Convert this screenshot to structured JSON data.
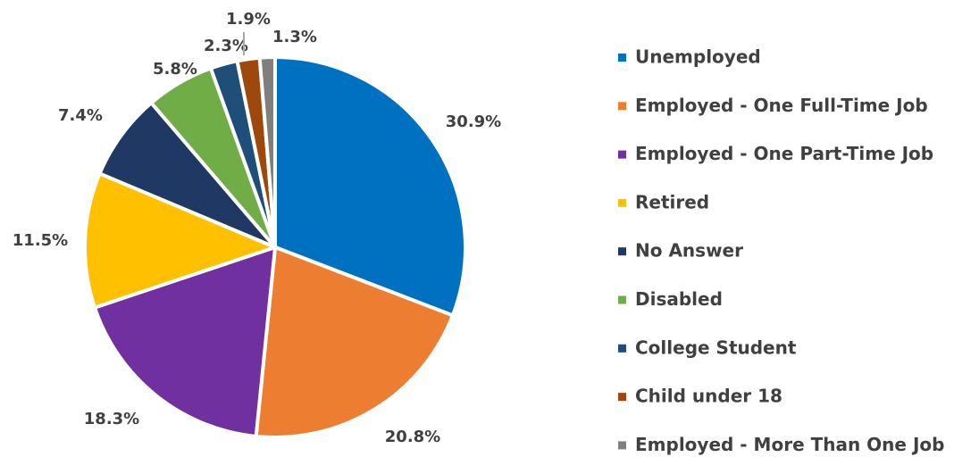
{
  "chart_data": {
    "type": "pie",
    "categories": [
      "Unemployed",
      "Employed - One Full-Time Job",
      "Employed - One Part-Time Job",
      "Retired",
      "No Answer",
      "Disabled",
      "College Student",
      "Child under 18",
      "Employed - More Than One Job"
    ],
    "values": [
      30.9,
      20.8,
      18.3,
      11.5,
      7.4,
      5.8,
      2.3,
      1.9,
      1.3
    ],
    "value_labels": [
      "30.9%",
      "20.8%",
      "18.3%",
      "11.5%",
      "7.4%",
      "5.8%",
      "2.3%",
      "1.9%",
      "1.3%"
    ],
    "colors": [
      "#0070c0",
      "#ed7d31",
      "#7030a0",
      "#ffc000",
      "#1f3864",
      "#70ad47",
      "#1f4e79",
      "#9e480e",
      "#7f7f7f"
    ],
    "legend": "right"
  }
}
